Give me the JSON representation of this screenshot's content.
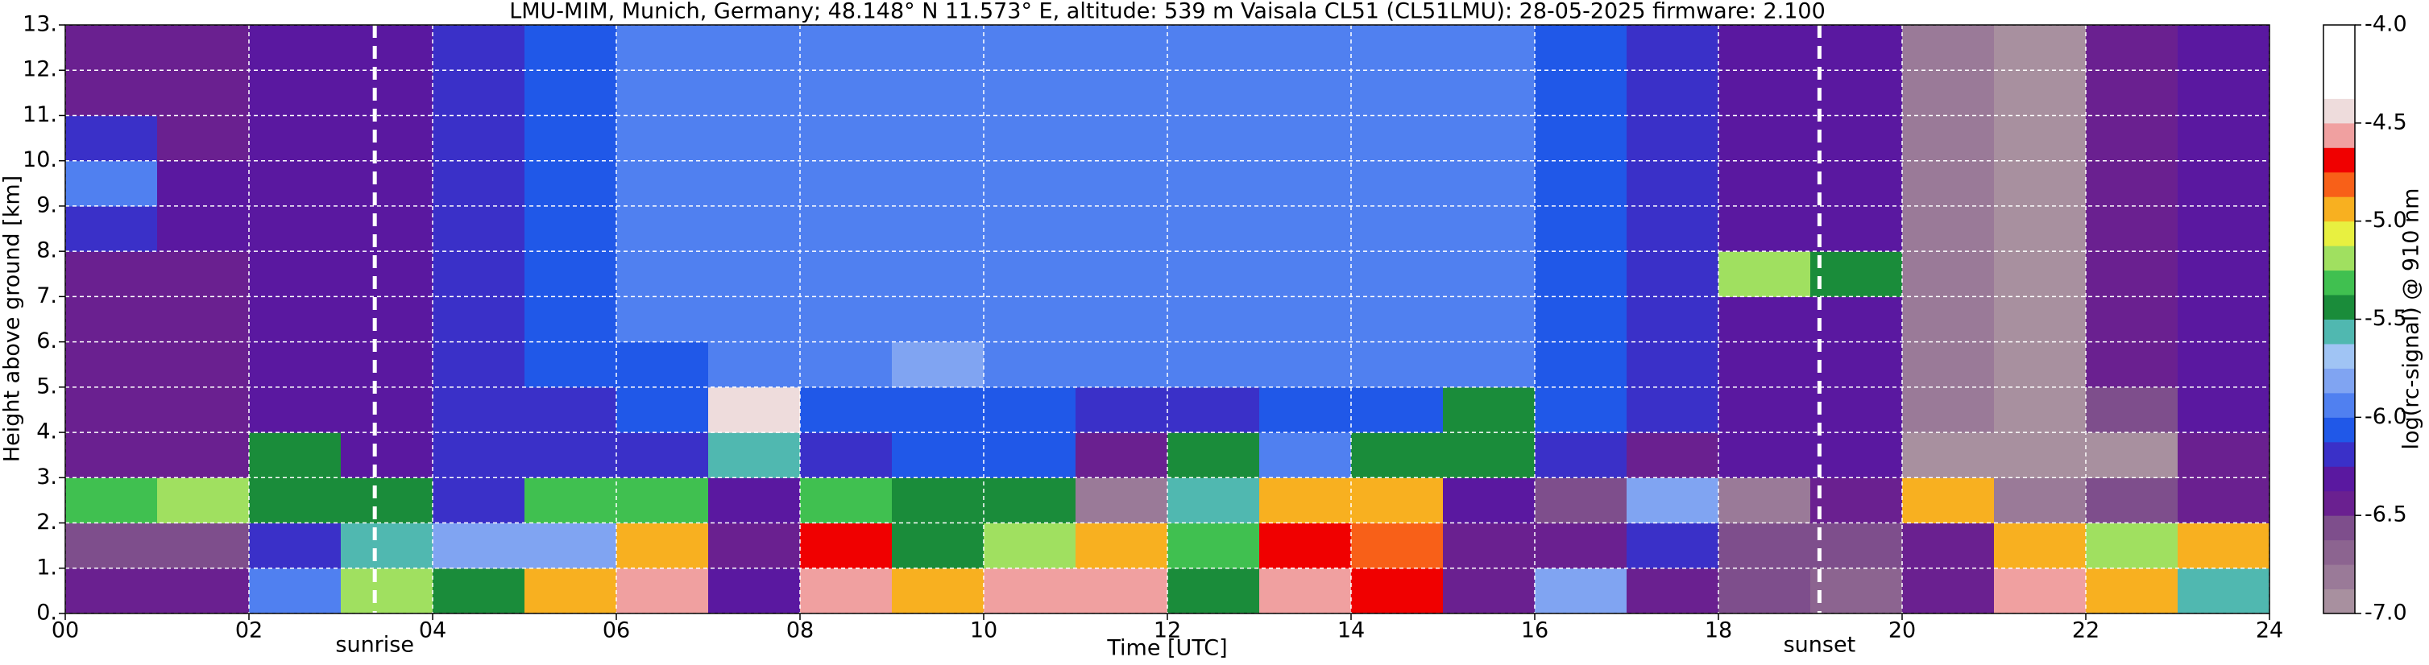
{
  "chart_data": {
    "type": "heatmap",
    "title": "LMU-MIM, Munich, Germany; 48.148° N 11.573° E, altitude: 539 m    Vaisala CL51 (CL51LMU): 28-05-2025    firmware: 2.100",
    "xlabel": "Time [UTC]",
    "ylabel": "Height above ground [km]",
    "x": [
      0,
      1,
      2,
      3,
      4,
      5,
      6,
      7,
      8,
      9,
      10,
      11,
      12,
      13,
      14,
      15,
      16,
      17,
      18,
      19,
      20,
      21,
      22,
      23
    ],
    "y": [
      0,
      1,
      2,
      3,
      4,
      5,
      6,
      7,
      8,
      9,
      10,
      11,
      12
    ],
    "z": [
      [
        -6.4,
        -6.6,
        -5.3,
        -6.5,
        -6.4,
        -6.4,
        -6.4,
        -6.4,
        -6.2,
        -5.9,
        -6.2,
        -6.4,
        -6.4
      ],
      [
        -6.4,
        -6.6,
        -5.2,
        -6.4,
        -6.4,
        -6.4,
        -6.4,
        -6.4,
        -6.3,
        -6.3,
        -6.4,
        -6.4,
        -6.4
      ],
      [
        -6.0,
        -6.2,
        -5.5,
        -5.4,
        -6.3,
        -6.3,
        -6.3,
        -6.3,
        -6.3,
        -6.3,
        -6.3,
        -6.3,
        -6.3
      ],
      [
        -5.2,
        -5.6,
        -5.4,
        -6.3,
        -6.3,
        -6.3,
        -6.3,
        -6.3,
        -6.3,
        -6.3,
        -6.3,
        -6.3,
        -6.3
      ],
      [
        -5.4,
        -5.8,
        -6.2,
        -6.2,
        -6.2,
        -6.2,
        -6.2,
        -6.2,
        -6.2,
        -6.2,
        -6.2,
        -6.2,
        -6.2
      ],
      [
        -5.0,
        -5.8,
        -5.3,
        -6.2,
        -6.2,
        -6.1,
        -6.1,
        -6.1,
        -6.1,
        -6.1,
        -6.1,
        -6.1,
        -6.1
      ],
      [
        -4.6,
        -5.0,
        -5.3,
        -6.2,
        -6.1,
        -6.1,
        -6.0,
        -6.0,
        -6.0,
        -6.0,
        -6.0,
        -6.0,
        -6.0
      ],
      [
        -6.3,
        -6.4,
        -6.3,
        -5.6,
        -4.5,
        -6.0,
        -6.0,
        -5.9,
        -5.9,
        -5.9,
        -5.9,
        -5.9,
        -5.9
      ],
      [
        -4.6,
        -4.7,
        -5.3,
        -6.2,
        -6.1,
        -6.0,
        -5.9,
        -5.9,
        -5.9,
        -5.9,
        -5.9,
        -5.9,
        -5.9
      ],
      [
        -5.0,
        -5.4,
        -5.4,
        -6.1,
        -6.1,
        -5.8,
        -5.9,
        -5.9,
        -5.9,
        -5.9,
        -5.9,
        -5.9,
        -5.9
      ],
      [
        -4.6,
        -5.2,
        -5.4,
        -6.1,
        -6.1,
        -6.0,
        -5.9,
        -5.9,
        -5.9,
        -5.9,
        -5.9,
        -5.9,
        -5.9
      ],
      [
        -4.6,
        -5.0,
        -6.8,
        -6.5,
        -6.2,
        -6.0,
        -5.9,
        -5.9,
        -5.9,
        -5.9,
        -5.9,
        -5.9,
        -5.9
      ],
      [
        -5.4,
        -5.3,
        -5.6,
        -5.4,
        -6.2,
        -6.0,
        -5.9,
        -5.9,
        -5.9,
        -5.9,
        -5.9,
        -5.9,
        -5.9
      ],
      [
        -4.6,
        -4.7,
        -5.0,
        -6.0,
        -6.1,
        -6.0,
        -5.9,
        -5.9,
        -5.9,
        -5.9,
        -5.9,
        -5.9,
        -5.9
      ],
      [
        -4.7,
        -4.8,
        -5.0,
        -5.5,
        -6.1,
        -6.0,
        -5.9,
        -5.9,
        -5.9,
        -5.9,
        -5.9,
        -5.9,
        -5.9
      ],
      [
        -6.4,
        -6.5,
        -6.3,
        -5.4,
        -5.4,
        -6.0,
        -6.0,
        -6.0,
        -6.0,
        -6.0,
        -6.0,
        -6.0,
        -6.0
      ],
      [
        -5.8,
        -6.4,
        -6.6,
        -6.2,
        -6.1,
        -6.1,
        -6.1,
        -6.1,
        -6.1,
        -6.1,
        -6.1,
        -6.1,
        -6.1
      ],
      [
        -6.5,
        -6.2,
        -5.8,
        -6.4,
        -6.2,
        -6.2,
        -6.2,
        -6.2,
        -6.2,
        -6.2,
        -6.2,
        -6.2,
        -6.2
      ],
      [
        -6.6,
        -6.6,
        -6.8,
        -6.3,
        -6.3,
        -6.3,
        -6.3,
        -5.2,
        -6.3,
        -6.3,
        -6.3,
        -6.3,
        -6.3
      ],
      [
        -6.7,
        -6.6,
        -6.5,
        -6.3,
        -6.3,
        -6.3,
        -6.3,
        -5.5,
        -6.3,
        -6.3,
        -6.3,
        -6.3,
        -6.3
      ],
      [
        -6.5,
        -6.5,
        -5.0,
        -7.0,
        -6.8,
        -6.8,
        -6.8,
        -6.8,
        -6.8,
        -6.8,
        -6.8,
        -6.8,
        -6.8
      ],
      [
        -4.6,
        -5.0,
        -6.8,
        -7.0,
        -7.0,
        -7.0,
        -7.0,
        -7.0,
        -7.0,
        -7.0,
        -7.0,
        -7.0,
        -7.0
      ],
      [
        -5.0,
        -5.2,
        -6.6,
        -6.9,
        -6.6,
        -6.5,
        -6.5,
        -6.5,
        -6.5,
        -6.5,
        -6.5,
        -6.5,
        -6.5
      ],
      [
        -5.6,
        -5.0,
        -6.5,
        -6.4,
        -6.3,
        -6.3,
        -6.3,
        -6.3,
        -6.3,
        -6.3,
        -6.3,
        -6.3,
        -6.3
      ]
    ],
    "xlim": [
      0,
      24
    ],
    "ylim": [
      0,
      13
    ],
    "xticks": [
      {
        "value": 0,
        "label": "00"
      },
      {
        "value": 2,
        "label": "02"
      },
      {
        "value": 4,
        "label": "04"
      },
      {
        "value": 6,
        "label": "06"
      },
      {
        "value": 8,
        "label": "08"
      },
      {
        "value": 10,
        "label": "10"
      },
      {
        "value": 12,
        "label": "12"
      },
      {
        "value": 14,
        "label": "14"
      },
      {
        "value": 16,
        "label": "16"
      },
      {
        "value": 18,
        "label": "18"
      },
      {
        "value": 20,
        "label": "20"
      },
      {
        "value": 22,
        "label": "22"
      },
      {
        "value": 24,
        "label": "24"
      }
    ],
    "yticks": [
      {
        "value": 0,
        "label": "0."
      },
      {
        "value": 1,
        "label": "1."
      },
      {
        "value": 2,
        "label": "2."
      },
      {
        "value": 3,
        "label": "3."
      },
      {
        "value": 4,
        "label": "4."
      },
      {
        "value": 5,
        "label": "5."
      },
      {
        "value": 6,
        "label": "6."
      },
      {
        "value": 7,
        "label": "7."
      },
      {
        "value": 8,
        "label": "8."
      },
      {
        "value": 9,
        "label": "9."
      },
      {
        "value": 10,
        "label": "10."
      },
      {
        "value": 11,
        "label": "11."
      },
      {
        "value": 12,
        "label": "12."
      },
      {
        "value": 13,
        "label": "13."
      }
    ],
    "grid": true,
    "annotations": [
      {
        "text": "sunrise",
        "x": 3.37
      },
      {
        "text": "sunset",
        "x": 19.1
      }
    ],
    "colorbar": {
      "label": "log(rc-signal) @ 910 nm",
      "lim": [
        -7,
        -4
      ],
      "ticks": [
        {
          "value": -4,
          "label": "-4.0"
        },
        {
          "value": -4.5,
          "label": "-4.5"
        },
        {
          "value": -5,
          "label": "-5.0"
        },
        {
          "value": -5.5,
          "label": "-5.5"
        },
        {
          "value": -6,
          "label": "-6.0"
        },
        {
          "value": -6.5,
          "label": "-6.5"
        },
        {
          "value": -7,
          "label": "-7.0"
        }
      ],
      "colors": [
        "#a8909f",
        "#9a7a98",
        "#8c6490",
        "#7e4e8c",
        "#6a2090",
        "#5a18a0",
        "#3a30c8",
        "#2058e8",
        "#5080f0",
        "#80a4f2",
        "#a0c4f4",
        "#50b8b0",
        "#1a8c3a",
        "#40c050",
        "#a0e060",
        "#e8f040",
        "#f8b020",
        "#f86018",
        "#f00000",
        "#f0a0a0",
        "#eedcdc",
        "#ffffff",
        "#ffffff",
        "#ffffff"
      ]
    }
  }
}
